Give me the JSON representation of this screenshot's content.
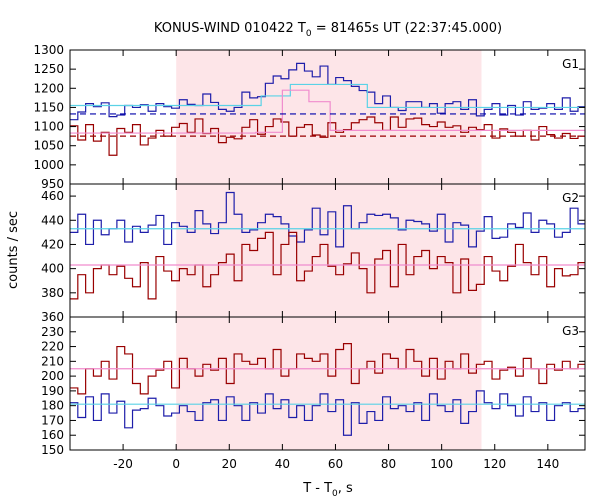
{
  "chart_data": {
    "type": "line",
    "title": "KONUS-WIND 010422 T",
    "title_sub": "0",
    "title_rest": " = 81465s UT (22:37:45.000)",
    "xlabel": "T - T",
    "xlabel_sub": "0",
    "xlabel_rest": ", s",
    "ylabel": "counts / sec",
    "xlim": [
      -40,
      154
    ],
    "x_ticks": [
      -20,
      0,
      20,
      40,
      60,
      80,
      100,
      120,
      140
    ],
    "highlight_interval": [
      0,
      115
    ],
    "step": 2.944,
    "colors": {
      "highlight": "#fde5e8",
      "dark_red": "#990000",
      "blue": "#1e1eaa",
      "cyan": "#5ad2e6",
      "pink": "#f08ccd",
      "navy": "#0000aa"
    },
    "panels": [
      {
        "label": "G1",
        "ylim": [
          950,
          1300
        ],
        "y_ticks": [
          950,
          1000,
          1050,
          1100,
          1150,
          1200,
          1250,
          1300
        ],
        "series": [
          {
            "color": "blue",
            "values": [
              1118,
              1138,
              1160,
              1152,
              1162,
              1126,
              1130,
              1155,
              1150,
              1157,
              1140,
              1160,
              1152,
              1148,
              1170,
              1158,
              1155,
              1185,
              1163,
              1145,
              1140,
              1150,
              1190,
              1175,
              1178,
              1213,
              1232,
              1225,
              1248,
              1265,
              1245,
              1230,
              1258,
              1210,
              1228,
              1220,
              1205,
              1194,
              1190,
              1160,
              1180,
              1150,
              1142,
              1165,
              1165,
              1150,
              1160,
              1135,
              1160,
              1165,
              1145,
              1170,
              1128,
              1145,
              1160,
              1130,
              1155,
              1130,
              1165,
              1145,
              1148,
              1160,
              1145,
              1175,
              1140,
              1152
            ]
          },
          {
            "color": "dark_red",
            "values": [
              1102,
              1065,
              1105,
              1062,
              1085,
              1025,
              1095,
              1085,
              1105,
              1052,
              1070,
              1090,
              1075,
              1098,
              1108,
              1085,
              1120,
              1082,
              1095,
              1058,
              1072,
              1068,
              1098,
              1118,
              1080,
              1100,
              1120,
              1112,
              1075,
              1098,
              1105,
              1078,
              1072,
              1110,
              1085,
              1092,
              1110,
              1118,
              1125,
              1110,
              1090,
              1125,
              1098,
              1120,
              1122,
              1105,
              1100,
              1112,
              1098,
              1102,
              1085,
              1098,
              1092,
              1105,
              1070,
              1094,
              1085,
              1075,
              1090,
              1065,
              1100,
              1079,
              1070,
              1082,
              1069,
              1075
            ]
          },
          {
            "color": "cyan",
            "kind": "step",
            "steps": [
              [
                -40,
                1155
              ],
              [
                30,
                1155
              ],
              [
                32,
                1180
              ],
              [
                43,
                1210
              ],
              [
                65,
                1210
              ],
              [
                72,
                1150
              ],
              [
                154,
                1150
              ]
            ]
          },
          {
            "color": "pink",
            "kind": "step",
            "steps": [
              [
                -40,
                1083
              ],
              [
                30,
                1085
              ],
              [
                40,
                1195
              ],
              [
                50,
                1165
              ],
              [
                58,
                1090
              ],
              [
                154,
                1083
              ]
            ]
          },
          {
            "color": "navy",
            "kind": "dashed",
            "value": 1133
          },
          {
            "color": "dark_red",
            "kind": "dashed",
            "value": 1075
          }
        ]
      },
      {
        "label": "G2",
        "ylim": [
          360,
          470
        ],
        "y_ticks": [
          360,
          380,
          400,
          420,
          440,
          460
        ],
        "series": [
          {
            "color": "blue",
            "values": [
              430,
              445,
              420,
              440,
              428,
              433,
              440,
              422,
              435,
              430,
              436,
              444,
              420,
              438,
              435,
              430,
              448,
              437,
              429,
              438,
              463,
              445,
              430,
              432,
              438,
              445,
              443,
              437,
              427,
              422,
              432,
              450,
              428,
              447,
              418,
              452,
              433,
              438,
              445,
              444,
              445,
              442,
              432,
              440,
              439,
              437,
              431,
              445,
              422,
              438,
              436,
              418,
              431,
              443,
              425,
              426,
              437,
              434,
              446,
              430,
              440,
              437,
              426,
              430,
              450,
              437
            ]
          },
          {
            "color": "dark_red",
            "values": [
              375,
              395,
              380,
              400,
              403,
              395,
              402,
              392,
              385,
              405,
              375,
              410,
              398,
              390,
              400,
              395,
              403,
              385,
              395,
              405,
              412,
              390,
              420,
              415,
              425,
              430,
              395,
              420,
              430,
              390,
              398,
              410,
              420,
              402,
              395,
              404,
              413,
              400,
              380,
              408,
              415,
              385,
              420,
              395,
              410,
              415,
              400,
              410,
              405,
              380,
              408,
              382,
              387,
              410,
              398,
              390,
              402,
              420,
              405,
              395,
              410,
              385,
              400,
              394,
              395,
              405
            ]
          },
          {
            "color": "cyan",
            "kind": "flat",
            "value": 433
          },
          {
            "color": "pink",
            "kind": "flat",
            "value": 403
          }
        ]
      },
      {
        "label": "G3",
        "ylim": [
          150,
          240
        ],
        "y_ticks": [
          150,
          160,
          170,
          180,
          190,
          200,
          210,
          220,
          230
        ],
        "series": [
          {
            "color": "blue",
            "values": [
              182,
              172,
              186,
              170,
              188,
              175,
              183,
              165,
              177,
              178,
              185,
              180,
              173,
              175,
              180,
              176,
              170,
              182,
              184,
              170,
              186,
              180,
              170,
              182,
              175,
              188,
              178,
              184,
              172,
              180,
              170,
              180,
              188,
              176,
              184,
              160,
              182,
              168,
              176,
              170,
              186,
              178,
              180,
              176,
              182,
              170,
              188,
              180,
              176,
              184,
              168,
              176,
              190,
              182,
              178,
              188,
              180,
              173,
              186,
              176,
              182,
              170,
              180,
              182,
              176,
              178
            ]
          },
          {
            "color": "dark_red",
            "values": [
              192,
              188,
              205,
              200,
              210,
              198,
              220,
              215,
              195,
              188,
              200,
              204,
              210,
              192,
              212,
              205,
              200,
              208,
              204,
              212,
              195,
              215,
              210,
              208,
              212,
              205,
              218,
              200,
              205,
              215,
              212,
              210,
              215,
              200,
              218,
              222,
              195,
              205,
              210,
              202,
              215,
              212,
              205,
              218,
              210,
              200,
              212,
              198,
              210,
              205,
              215,
              202,
              208,
              210,
              198,
              204,
              206,
              200,
              212,
              205,
              195,
              208,
              204,
              210,
              205,
              208
            ]
          },
          {
            "color": "cyan",
            "kind": "flat",
            "value": 181
          },
          {
            "color": "pink",
            "kind": "flat",
            "value": 205
          }
        ]
      }
    ]
  }
}
